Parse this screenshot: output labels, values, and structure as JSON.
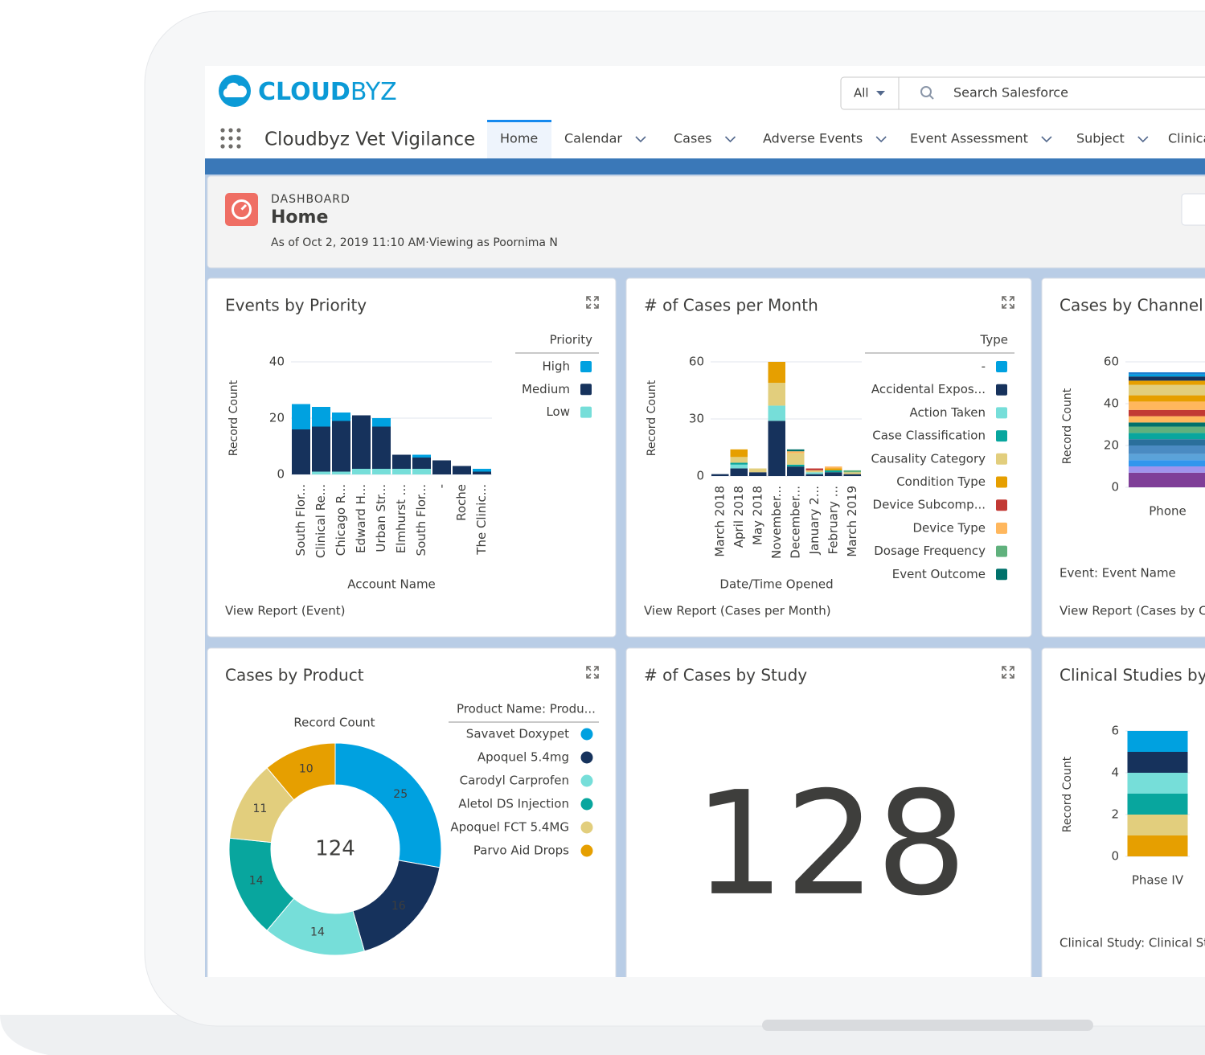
{
  "header": {
    "logo_bold": "CLOUD",
    "logo_light": "BYZ",
    "search_scope": "All",
    "search_placeholder": "Search Salesforce"
  },
  "nav": {
    "app_name": "Cloudbyz Vet Vigilance",
    "tabs": [
      "Home",
      "Calendar",
      "Cases",
      "Adverse Events",
      "Event Assessment",
      "Subject",
      "Clinica"
    ]
  },
  "dashboard": {
    "label": "DASHBOARD",
    "title": "Home",
    "subtitle": "As of Oct 2, 2019 11:10 AM·Viewing as Poornima N"
  },
  "widgets": [
    {
      "title": "Events by Priority",
      "link": "View Report (Event)",
      "chart_data": {
        "type": "bar",
        "stacked": true,
        "y_label": "Record Count",
        "x_label": "Account Name",
        "legend_title": "Priority",
        "categories": [
          "South Flor...",
          "Clinical Re...",
          "Chicago R...",
          "Edward H...",
          "Urban Str...",
          "Elmhurst ...",
          "South Flor...",
          "-",
          "Roche",
          "The Clinic..."
        ],
        "ylim": [
          0,
          40
        ],
        "yticks": [
          0,
          20,
          40
        ],
        "series": [
          {
            "name": "Low",
            "color": "#76ded9",
            "values": [
              0,
              1,
              1,
              2,
              2,
              2,
              2,
              0,
              0,
              0
            ]
          },
          {
            "name": "Medium",
            "color": "#16325c",
            "values": [
              16,
              16,
              18,
              19,
              15,
              5,
              4,
              5,
              3,
              1
            ]
          },
          {
            "name": "High",
            "color": "#00a1e0",
            "values": [
              9,
              7,
              3,
              0,
              3,
              0,
              1,
              0,
              0,
              1
            ]
          }
        ],
        "legend_order": "reverse"
      }
    },
    {
      "title": "# of Cases per Month",
      "link": "View Report (Cases per Month)",
      "chart_data": {
        "type": "bar",
        "stacked": true,
        "y_label": "Record Count",
        "x_label": "Date/Time Opened",
        "legend_title": "Type",
        "categories": [
          "March 2018",
          "April 2018",
          "May 2018",
          "November...",
          "December...",
          "January 2...",
          "February ...",
          "March 2019"
        ],
        "ylim": [
          0,
          60
        ],
        "yticks": [
          0,
          30,
          60
        ],
        "series": [
          {
            "name": "-",
            "color": "#00a1e0",
            "values": [
              0,
              0,
              0,
              0,
              0,
              0,
              0,
              0
            ]
          },
          {
            "name": "Accidental Expos...",
            "color": "#16325c",
            "values": [
              1,
              4,
              2,
              29,
              5,
              1,
              2,
              1
            ]
          },
          {
            "name": "Action Taken",
            "color": "#76ded9",
            "values": [
              0,
              2,
              0,
              8,
              0,
              1,
              0,
              0
            ]
          },
          {
            "name": "Case Classification",
            "color": "#08a69e",
            "values": [
              0,
              1,
              0,
              0,
              1,
              0,
              1,
              0
            ]
          },
          {
            "name": "Causality Category",
            "color": "#e2ce7d",
            "values": [
              0,
              3,
              2,
              12,
              6,
              1,
              0,
              1
            ]
          },
          {
            "name": "Condition Type",
            "color": "#e69f00",
            "values": [
              0,
              4,
              0,
              11,
              0,
              0,
              1,
              0
            ]
          },
          {
            "name": "Device Subcomp...",
            "color": "#c23934",
            "values": [
              0,
              0,
              0,
              0,
              0,
              1,
              0,
              0
            ]
          },
          {
            "name": "Device Type",
            "color": "#ffb75d",
            "values": [
              0,
              0,
              0,
              0,
              1,
              0,
              1,
              0
            ]
          },
          {
            "name": "Dosage Frequency",
            "color": "#60b17d",
            "values": [
              0,
              0,
              0,
              0,
              0,
              0,
              0,
              1
            ]
          },
          {
            "name": "Event Outcome",
            "color": "#00716b",
            "values": [
              0,
              0,
              0,
              0,
              1,
              0,
              0,
              0
            ]
          }
        ]
      }
    },
    {
      "title": "Cases by Channel",
      "link": "View Report (Cases by Ch",
      "chart_data": {
        "type": "bar",
        "stacked": true,
        "y_label": "Record Count",
        "legend_title": "Event: Event Name",
        "categories": [
          "Phone"
        ],
        "ylim": [
          0,
          60
        ],
        "yticks": [
          0,
          20,
          40,
          60
        ],
        "series": [
          {
            "color": "#7f3f98",
            "values": [
              7
            ]
          },
          {
            "color": "#a094ed",
            "values": [
              3
            ]
          },
          {
            "color": "#3296ed",
            "values": [
              3
            ]
          },
          {
            "color": "#5ba3d9",
            "values": [
              3
            ]
          },
          {
            "color": "#4a8bc2",
            "values": [
              4
            ]
          },
          {
            "color": "#2a6f9b",
            "values": [
              3
            ]
          },
          {
            "color": "#08a69e",
            "values": [
              3
            ]
          },
          {
            "color": "#60b17d",
            "values": [
              3
            ]
          },
          {
            "color": "#00716b",
            "values": [
              2
            ]
          },
          {
            "color": "#ffb75d",
            "values": [
              3
            ]
          },
          {
            "color": "#c23934",
            "values": [
              3
            ]
          },
          {
            "color": "#ffb75d",
            "values": [
              4
            ]
          },
          {
            "color": "#e69f00",
            "values": [
              3
            ]
          },
          {
            "color": "#e2ce7d",
            "values": [
              5
            ]
          },
          {
            "color": "#e69f00",
            "values": [
              2
            ]
          },
          {
            "color": "#16325c",
            "values": [
              2
            ]
          },
          {
            "color": "#00a1e0",
            "values": [
              1
            ]
          },
          {
            "color": "#1b7fd0",
            "values": [
              1
            ]
          }
        ]
      }
    },
    {
      "title": "Cases by Product",
      "chart_data": {
        "type": "donut",
        "label": "Record Count",
        "total": 124,
        "legend_title": "Product Name: Produ...",
        "categories": [
          "Savavet Doxypet",
          "Apoquel 5.4mg",
          "Carodyl Carprofen",
          "Aletol DS Injection",
          "Apoquel FCT 5.4MG",
          "Parvo Aid Drops"
        ],
        "values": [
          25,
          16,
          14,
          14,
          11,
          10
        ],
        "colors": [
          "#00a1e0",
          "#16325c",
          "#76ded9",
          "#08a69e",
          "#e2ce7d",
          "#e69f00"
        ]
      }
    },
    {
      "title": "# of Cases by Study",
      "chart_data": {
        "type": "metric",
        "value": 128,
        "color": "#00716b"
      }
    },
    {
      "title": "Clinical Studies by F",
      "chart_data": {
        "type": "bar",
        "stacked": true,
        "y_label": "Record Count",
        "legend_title": "Clinical Study: Clinical St",
        "categories": [
          "Phase IV"
        ],
        "ylim": [
          0,
          6
        ],
        "yticks": [
          0,
          2,
          4,
          6
        ],
        "series": [
          {
            "color": "#e69f00",
            "values": [
              1
            ]
          },
          {
            "color": "#e2ce7d",
            "values": [
              1
            ]
          },
          {
            "color": "#08a69e",
            "values": [
              1
            ]
          },
          {
            "color": "#76ded9",
            "values": [
              1
            ]
          },
          {
            "color": "#16325c",
            "values": [
              1
            ]
          },
          {
            "color": "#00a1e0",
            "values": [
              1
            ]
          }
        ]
      }
    }
  ]
}
